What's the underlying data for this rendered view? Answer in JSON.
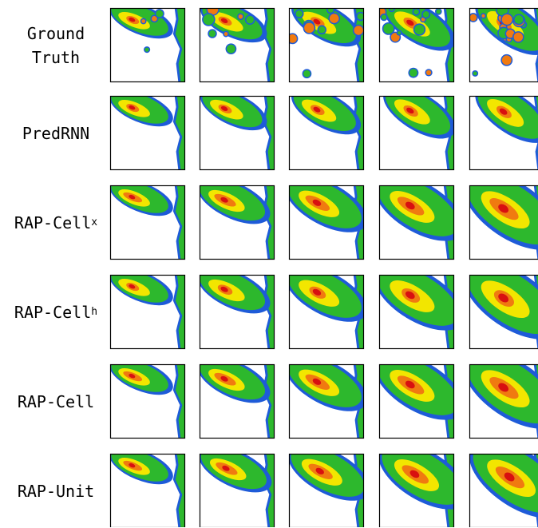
{
  "rows": [
    {
      "label": "Ground Truth"
    },
    {
      "label": "PredRNN"
    },
    {
      "label": "RAP-Cell",
      "subscript": "x"
    },
    {
      "label": "RAP-Cell",
      "subscript": "h"
    },
    {
      "label": "RAP-Cell"
    },
    {
      "label": "RAP-Unit"
    }
  ]
}
